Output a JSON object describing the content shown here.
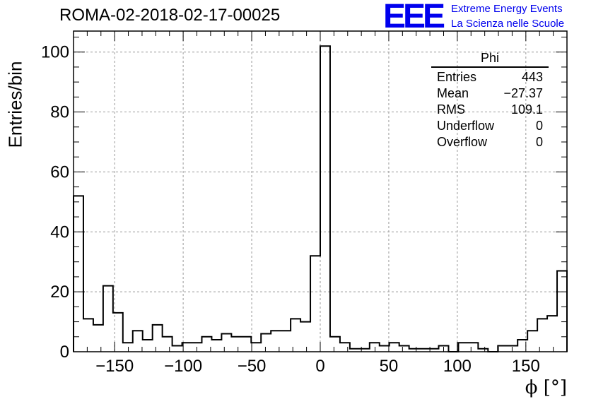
{
  "title": "ROMA-02-2018-02-17-00025",
  "logo": {
    "mark": "EEE",
    "line1": "Extreme Energy Events",
    "line2": "La Scienza nelle Scuole"
  },
  "stats": {
    "title": "Phi",
    "rows": [
      {
        "label": "Entries",
        "value": "443"
      },
      {
        "label": "Mean",
        "value": "−27.37"
      },
      {
        "label": "RMS",
        "value": "109.1"
      },
      {
        "label": "Underflow",
        "value": "0"
      },
      {
        "label": "Overflow",
        "value": "0"
      }
    ]
  },
  "chart_data": {
    "type": "bar",
    "histogram": true,
    "title": "ROMA-02-2018-02-17-00025",
    "xlabel": "ϕ [°]",
    "ylabel": "Entries/bin",
    "xlim": [
      -180,
      180
    ],
    "ylim": [
      0,
      107
    ],
    "bin_width": 7.2,
    "xticks": [
      -150,
      -100,
      -50,
      0,
      50,
      100,
      150
    ],
    "xtick_labels": [
      "−150",
      "−100",
      "−50",
      "0",
      "50",
      "100",
      "150"
    ],
    "yticks": [
      0,
      20,
      40,
      60,
      80,
      100
    ],
    "grid": true,
    "line_color": "#000000",
    "values": [
      52,
      11,
      9,
      22,
      13,
      3,
      7,
      4,
      9,
      5,
      2,
      3,
      3,
      5,
      4,
      6,
      5,
      5,
      3,
      6,
      7,
      7,
      11,
      10,
      32,
      102,
      5,
      3,
      1,
      1,
      3,
      2,
      3,
      2,
      1,
      1,
      1,
      2,
      0,
      3,
      3,
      1,
      0,
      2,
      2,
      4,
      7,
      11,
      12,
      27
    ]
  }
}
